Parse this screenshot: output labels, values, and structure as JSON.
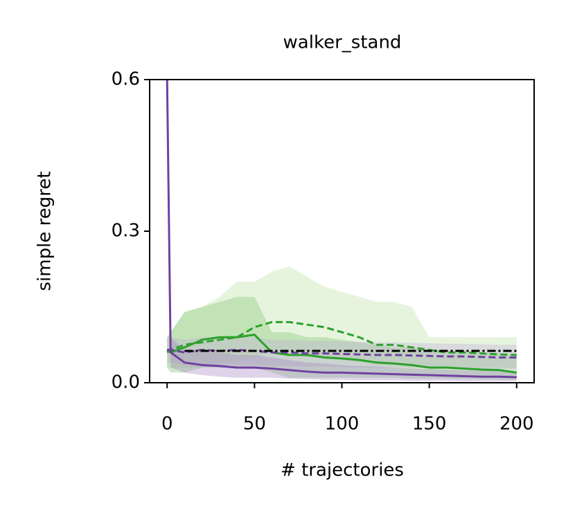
{
  "chart_data": {
    "type": "line",
    "title": "walker_stand",
    "xlabel": "# trajectories",
    "ylabel": "simple regret",
    "x": [
      0,
      2,
      10,
      20,
      30,
      40,
      50,
      60,
      70,
      80,
      90,
      100,
      110,
      120,
      130,
      140,
      150,
      160,
      170,
      180,
      190,
      200
    ],
    "xlim": [
      -10,
      210
    ],
    "xticks": [
      0,
      50,
      100,
      150,
      200
    ],
    "ylim": [
      0,
      0.6
    ],
    "yticks": [
      {
        "value": 0,
        "label": "0.0"
      },
      0.3,
      0.6
    ],
    "series": [
      {
        "color": "#2ca02c",
        "dash": "dashed",
        "band_color": "#b7e0a0",
        "band_opacity": 0.35,
        "values": [
          0.06,
          0.065,
          0.075,
          0.08,
          0.085,
          0.09,
          0.11,
          0.12,
          0.12,
          0.115,
          0.11,
          0.1,
          0.09,
          0.075,
          0.075,
          0.07,
          0.065,
          0.06,
          0.06,
          0.058,
          0.056,
          0.055
        ],
        "band": {
          "lower": [
            0.03,
            0.03,
            0.03,
            0.03,
            0.04,
            0.04,
            0.05,
            0.06,
            0.06,
            0.05,
            0.05,
            0.045,
            0.04,
            0.035,
            0.035,
            0.03,
            0.03,
            0.03,
            0.03,
            0.03,
            0.03,
            0.03
          ],
          "upper": [
            0.09,
            0.1,
            0.14,
            0.15,
            0.17,
            0.2,
            0.2,
            0.22,
            0.23,
            0.21,
            0.19,
            0.18,
            0.17,
            0.16,
            0.16,
            0.15,
            0.09,
            0.09,
            0.09,
            0.09,
            0.09,
            0.09
          ]
        }
      },
      {
        "color": "#2ca02c",
        "dash": "solid",
        "band_color": "#7cc46a",
        "band_opacity": 0.35,
        "values": [
          0.065,
          0.06,
          0.07,
          0.085,
          0.09,
          0.09,
          0.095,
          0.06,
          0.055,
          0.055,
          0.05,
          0.048,
          0.045,
          0.04,
          0.038,
          0.035,
          0.03,
          0.03,
          0.028,
          0.026,
          0.025,
          0.02
        ],
        "band": {
          "lower": [
            0.03,
            0.02,
            0.02,
            0.03,
            0.03,
            0.03,
            0.03,
            0.02,
            0.01,
            0.01,
            0.01,
            0.01,
            0.01,
            0.01,
            0.01,
            0.008,
            0.008,
            0.008,
            0.007,
            0.007,
            0.006,
            0.006
          ],
          "upper": [
            0.09,
            0.1,
            0.14,
            0.15,
            0.16,
            0.17,
            0.17,
            0.1,
            0.1,
            0.09,
            0.09,
            0.085,
            0.08,
            0.075,
            0.07,
            0.07,
            0.065,
            0.06,
            0.06,
            0.06,
            0.058,
            0.055
          ]
        }
      },
      {
        "color": "#7040a0",
        "dash": "dashed",
        "band_color": "#c0a8d8",
        "band_opacity": 0.35,
        "values": [
          0.065,
          0.065,
          0.06,
          0.065,
          0.063,
          0.065,
          0.063,
          0.06,
          0.06,
          0.058,
          0.058,
          0.057,
          0.056,
          0.055,
          0.055,
          0.054,
          0.053,
          0.052,
          0.052,
          0.051,
          0.05,
          0.05
        ],
        "band": {
          "lower": [
            0.04,
            0.04,
            0.035,
            0.035,
            0.035,
            0.035,
            0.035,
            0.033,
            0.033,
            0.032,
            0.032,
            0.031,
            0.03,
            0.03,
            0.03,
            0.03,
            0.029,
            0.028,
            0.028,
            0.027,
            0.027,
            0.027
          ],
          "upper": [
            0.09,
            0.09,
            0.085,
            0.09,
            0.09,
            0.09,
            0.09,
            0.085,
            0.085,
            0.083,
            0.083,
            0.082,
            0.081,
            0.08,
            0.08,
            0.079,
            0.078,
            0.077,
            0.077,
            0.076,
            0.075,
            0.075
          ]
        }
      },
      {
        "color": "#7040a0",
        "dash": "solid",
        "band_color": "#a080c0",
        "band_opacity": 0.35,
        "values": [
          0.6,
          0.06,
          0.04,
          0.035,
          0.033,
          0.03,
          0.03,
          0.028,
          0.025,
          0.022,
          0.02,
          0.02,
          0.019,
          0.018,
          0.017,
          0.016,
          0.015,
          0.014,
          0.013,
          0.012,
          0.012,
          0.011
        ],
        "band": {
          "lower": [
            0.55,
            0.03,
            0.02,
            0.015,
            0.012,
            0.01,
            0.01,
            0.01,
            0.008,
            0.007,
            0.006,
            0.006,
            0.005,
            0.005,
            0.005,
            0.004,
            0.004,
            0.004,
            0.003,
            0.003,
            0.003,
            0.003
          ],
          "upper": [
            0.6,
            0.09,
            0.065,
            0.06,
            0.06,
            0.055,
            0.055,
            0.05,
            0.045,
            0.04,
            0.038,
            0.035,
            0.033,
            0.032,
            0.03,
            0.028,
            0.027,
            0.026,
            0.025,
            0.024,
            0.023,
            0.022
          ]
        }
      },
      {
        "color": "#000000",
        "dash": "dashdot",
        "values": [
          null,
          null,
          0.063,
          0.063,
          0.063,
          0.063,
          0.063,
          0.063,
          0.063,
          0.063,
          0.063,
          0.063,
          0.063,
          0.063,
          0.063,
          0.063,
          0.063,
          0.063,
          0.063,
          0.063,
          0.063,
          0.063
        ]
      }
    ]
  }
}
